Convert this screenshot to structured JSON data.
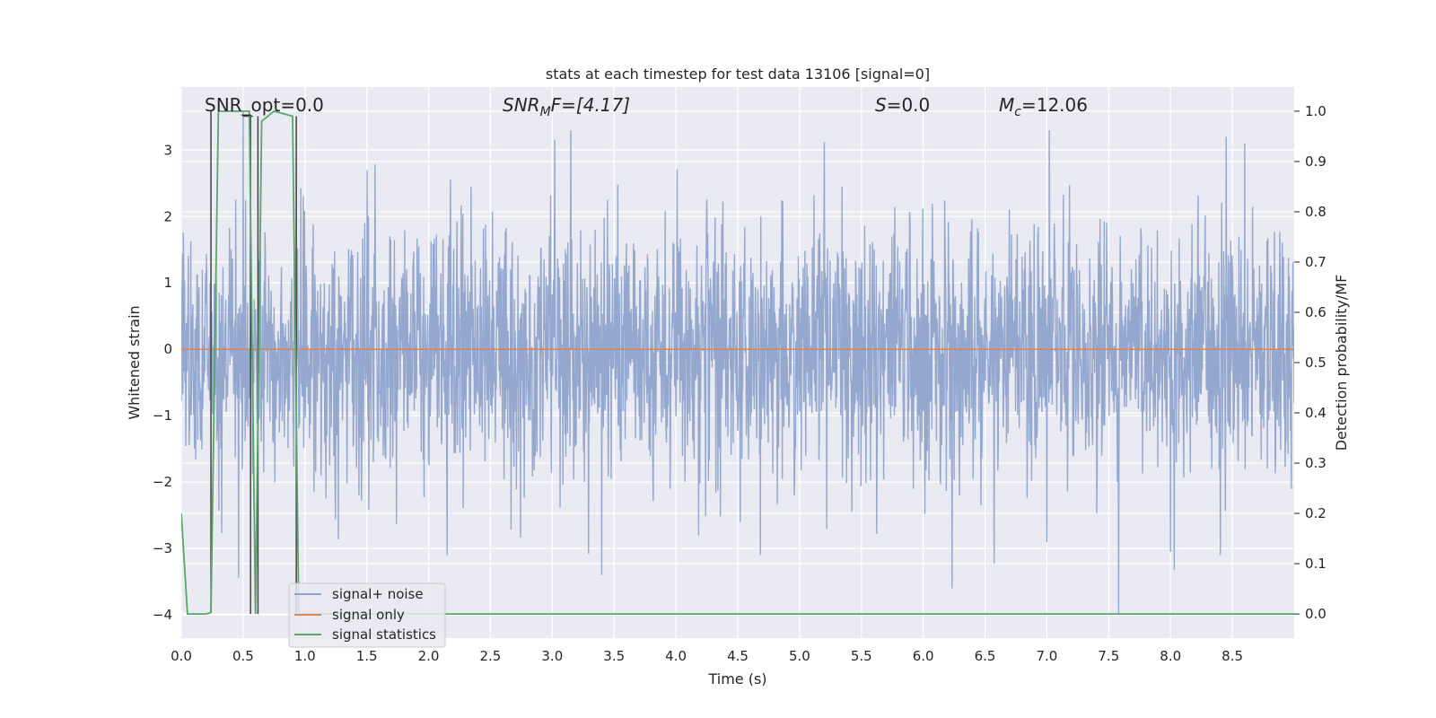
{
  "chart_data": {
    "type": "line",
    "title": "stats at each timestep for test data 13106 [signal=0]",
    "xlabel": "Time (s)",
    "ylabel_left": "Whitened strain",
    "ylabel_right": "Detection probability/MF",
    "xlim": [
      0.0,
      9.0
    ],
    "ylim_left": [
      -4.35,
      3.95
    ],
    "ylim_right": [
      -0.048,
      1.048
    ],
    "x_ticks": [
      "0.0",
      "0.5",
      "1.0",
      "1.5",
      "2.0",
      "2.5",
      "3.0",
      "3.5",
      "4.0",
      "4.5",
      "5.0",
      "5.5",
      "6.0",
      "6.5",
      "7.0",
      "7.5",
      "8.0",
      "8.5"
    ],
    "left_y_ticks": [
      "−4",
      "−3",
      "−2",
      "−1",
      "0",
      "1",
      "2",
      "3"
    ],
    "right_y_ticks": [
      "0.0",
      "0.1",
      "0.2",
      "0.3",
      "0.4",
      "0.5",
      "0.6",
      "0.7",
      "0.8",
      "0.9",
      "1.0"
    ],
    "grid": true,
    "legend_position": "lower-left",
    "annotations": {
      "snr_opt": "SNR_opt=0.0",
      "snr_mf_base": "SNR",
      "snr_mf_sub": "M",
      "snr_mf_rest": "F=[4.17]",
      "s_var": "S",
      "s_rest": "=0.0",
      "mc_var": "M",
      "mc_sub": "c",
      "mc_rest": "=12.06"
    },
    "series": [
      {
        "name": "signal+ noise",
        "color": "#8fa4cc",
        "axis": "left",
        "description_values": "whitened noise spanning roughly -4 to 3.6",
        "samples_per_second": 300,
        "duration": 9.0,
        "spike_highlights": [
          {
            "x": 0.5,
            "y": 3.6
          },
          {
            "x": 3.15,
            "y": 3.3
          },
          {
            "x": 8.45,
            "y": 3.2
          },
          {
            "x": 8.6,
            "y": 3.1
          },
          {
            "x": 3.4,
            "y": -3.4
          },
          {
            "x": 7.58,
            "y": -4.0
          },
          {
            "x": 7.0,
            "y": -2.9
          },
          {
            "x": 2.15,
            "y": -3.1
          },
          {
            "x": 8.0,
            "y": -3.05
          },
          {
            "x": 0.93,
            "y": 2.9
          }
        ]
      },
      {
        "name": "signal only",
        "color": "#dd8452",
        "axis": "left",
        "x": [
          0.0,
          9.0
        ],
        "values": [
          0.0,
          0.0
        ]
      },
      {
        "name": "signal statistics",
        "color": "#55a868",
        "axis": "right",
        "x": [
          0.0,
          0.05,
          0.2,
          0.24,
          0.3,
          0.55,
          0.6,
          0.65,
          0.75,
          0.9,
          0.95,
          1.0,
          9.0
        ],
        "values": [
          0.2,
          0.0,
          0.0,
          0.003,
          1.0,
          1.0,
          0.0,
          0.98,
          1.0,
          0.99,
          0.0,
          0.0,
          0.0
        ]
      }
    ],
    "vertical_markers": {
      "color": "#444444",
      "lines": [
        {
          "x": 0.24,
          "y_from": 0.003,
          "y_to": 1.0
        },
        {
          "x": 0.56,
          "y_from": 0.0,
          "y_to": 0.99
        },
        {
          "x": 0.62,
          "y_from": 0.0,
          "y_to": 0.99
        },
        {
          "x": 0.93,
          "y_from": 0.0,
          "y_to": 0.99
        }
      ],
      "caps": [
        {
          "x0": 0.5,
          "x1": 0.58,
          "y": 0.99
        }
      ]
    }
  }
}
